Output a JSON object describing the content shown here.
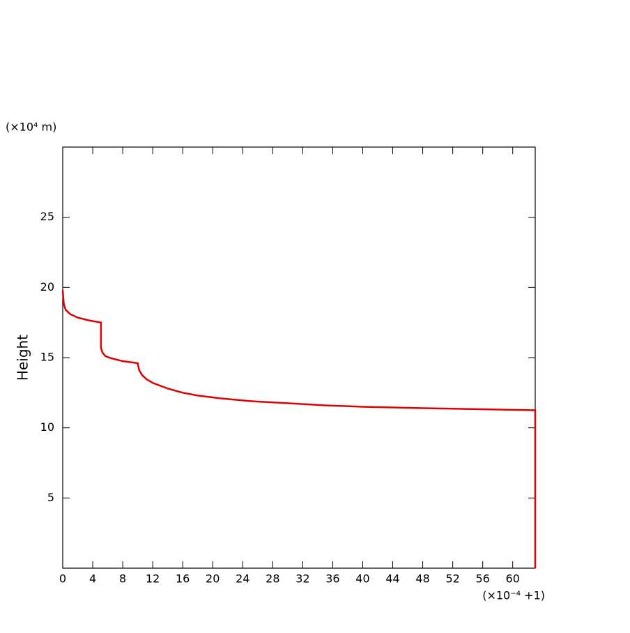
{
  "chart_data": {
    "type": "line",
    "y_unit": "(×10⁴ m)",
    "x_unit": "(×10⁻⁴ +1)",
    "ylabel": "Height",
    "xlim": [
      0,
      63
    ],
    "ylim": [
      0,
      30
    ],
    "xticks": [
      0,
      4,
      8,
      12,
      16,
      20,
      24,
      28,
      32,
      36,
      40,
      44,
      48,
      52,
      56,
      60
    ],
    "yticks": [
      5,
      10,
      15,
      20,
      25
    ],
    "x": [
      0,
      0.15,
      0.4,
      1,
      2,
      3.5,
      5.1,
      5.1,
      5.3,
      5.7,
      6.5,
      8,
      10,
      10.2,
      10.6,
      11.2,
      12,
      14,
      16,
      18,
      21,
      25,
      30,
      35,
      40,
      48,
      55,
      63,
      63
    ],
    "series": [
      {
        "color": "#e00000",
        "values": [
          19.8,
          18.8,
          18.4,
          18.1,
          17.85,
          17.65,
          17.5,
          15.7,
          15.35,
          15.1,
          14.95,
          14.75,
          14.6,
          14.1,
          13.75,
          13.45,
          13.2,
          12.8,
          12.5,
          12.3,
          12.1,
          11.9,
          11.75,
          11.6,
          11.5,
          11.4,
          11.33,
          11.25,
          0
        ]
      }
    ]
  }
}
